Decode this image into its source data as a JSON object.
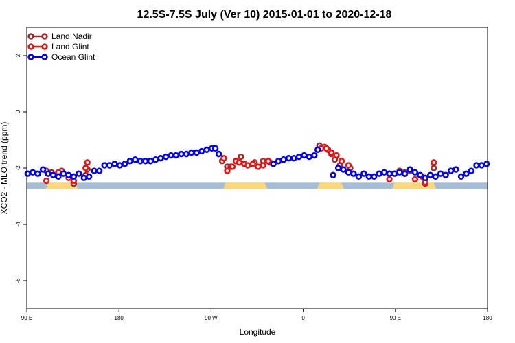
{
  "chart_data": {
    "type": "scatter",
    "title": "12.5S-7.5S July (Ver 10)   2015-01-01 to 2020-12-18",
    "xlabel": "Longitude",
    "ylabel": "XCO2 - MLO trend (ppm)",
    "xlim": [
      -90,
      180
    ],
    "ylim": [
      -7,
      3
    ],
    "x_ticks": [
      {
        "value": -90,
        "label": "90 E"
      },
      {
        "value": -36,
        "label": "180"
      },
      {
        "value": 18,
        "label": "90 W"
      },
      {
        "value": 72,
        "label": "0"
      },
      {
        "value": 126,
        "label": "90 E"
      },
      {
        "value": 180,
        "label": "180"
      }
    ],
    "y_ticks": [
      {
        "value": 2,
        "label": "2"
      },
      {
        "value": 0,
        "label": "0"
      },
      {
        "value": -2,
        "label": "-2"
      },
      {
        "value": -4,
        "label": "-4"
      },
      {
        "value": -6,
        "label": "-6"
      }
    ],
    "grid": false,
    "legend": {
      "position": "top-left",
      "entries": [
        "Land Nadir",
        "Land Glint",
        "Ocean Glint"
      ]
    },
    "series": [
      {
        "name": "Land Nadir",
        "color": "#a52a2a",
        "x": [
          -78.5,
          -75.5,
          -69.5,
          -62.5,
          -55.5,
          -54.5,
          24.5,
          27.5,
          29.5,
          35.5,
          43.5,
          48.5,
          52.5,
          81.5,
          84.5,
          86.5,
          88.5,
          90.5,
          93.5,
          99.5,
          128.5,
          131.5,
          134.5,
          143.5,
          148.5
        ],
        "y": [
          -2.1,
          -2.15,
          -2.1,
          -2.55,
          -2.25,
          -2.05,
          -1.75,
          -1.95,
          -1.95,
          -1.6,
          -1.8,
          -1.75,
          -1.8,
          -1.2,
          -1.25,
          -1.35,
          -1.5,
          -1.7,
          -1.9,
          -2.0,
          -2.1,
          -2.15,
          -2.1,
          -2.55,
          -2.0
        ]
      },
      {
        "name": "Land Glint",
        "color": "#ee1111",
        "x": [
          -78.5,
          -71.5,
          -65.5,
          -62.5,
          -55.5,
          -54.5,
          25.5,
          27.5,
          30.5,
          32.5,
          34.5,
          37.5,
          39.5,
          42.5,
          45.5,
          48.5,
          51.5,
          82.5,
          85.5,
          88.5,
          91.5,
          94.5,
          98.5,
          122.5,
          131.5,
          137.5,
          141.5,
          143.5,
          148.5
        ],
        "y": [
          -2.45,
          -2.15,
          -2.35,
          -2.45,
          -2.0,
          -1.8,
          -1.65,
          -2.1,
          -1.95,
          -1.75,
          -1.8,
          -1.85,
          -1.9,
          -1.85,
          -1.95,
          -1.9,
          -1.75,
          -1.3,
          -1.3,
          -1.45,
          -1.55,
          -1.75,
          -1.9,
          -2.4,
          -2.2,
          -2.4,
          -2.3,
          -2.5,
          -1.8
        ]
      },
      {
        "name": "Ocean Glint",
        "color": "#0000ee",
        "x": [
          -89.5,
          -86.5,
          -83.5,
          -80.5,
          -77.5,
          -74.5,
          -71.5,
          -68.5,
          -65.5,
          -62.5,
          -59.5,
          -56.5,
          -53.5,
          -50.5,
          -47.5,
          -44.5,
          -41.5,
          -38.5,
          -35.5,
          -32.5,
          -29.5,
          -26.5,
          -23.5,
          -20.5,
          -17.5,
          -14.5,
          -11.5,
          -8.5,
          -5.5,
          -2.5,
          0.5,
          3.5,
          6.5,
          9.5,
          12.5,
          15.5,
          18.5,
          20.5,
          22.5,
          54.5,
          57.5,
          60.5,
          63.5,
          66.5,
          69.5,
          72.5,
          75.5,
          78.5,
          80.5,
          89.5,
          92.5,
          95.5,
          98.5,
          101.5,
          104.5,
          107.5,
          110.5,
          113.5,
          116.5,
          119.5,
          122.5,
          125.5,
          128.5,
          131.5,
          134.5,
          137.5,
          140.5,
          143.5,
          146.5,
          149.5,
          152.5,
          155.5,
          158.5,
          161.5,
          164.5,
          167.5,
          170.5,
          173.5,
          176.5,
          179.5
        ],
        "y": [
          -2.2,
          -2.15,
          -2.2,
          -2.05,
          -2.2,
          -2.25,
          -2.3,
          -2.2,
          -2.25,
          -2.3,
          -2.2,
          -2.35,
          -2.3,
          -2.1,
          -2.1,
          -1.9,
          -1.9,
          -1.85,
          -1.9,
          -1.85,
          -1.75,
          -1.7,
          -1.75,
          -1.75,
          -1.75,
          -1.7,
          -1.65,
          -1.6,
          -1.55,
          -1.55,
          -1.5,
          -1.5,
          -1.45,
          -1.45,
          -1.4,
          -1.35,
          -1.3,
          -1.3,
          -1.5,
          -1.85,
          -1.75,
          -1.7,
          -1.65,
          -1.65,
          -1.6,
          -1.55,
          -1.6,
          -1.55,
          -1.35,
          -2.25,
          -2.0,
          -2.05,
          -2.15,
          -2.2,
          -2.3,
          -2.2,
          -2.3,
          -2.3,
          -2.2,
          -2.15,
          -2.2,
          -2.2,
          -2.15,
          -2.2,
          -2.05,
          -2.15,
          -2.25,
          -2.35,
          -2.25,
          -2.3,
          -2.2,
          -2.25,
          -2.1,
          -2.05,
          -2.3,
          -2.2,
          -2.1,
          -1.9,
          -1.9,
          -1.85
        ]
      }
    ],
    "map_strip": {
      "y_top": -2.52,
      "y_bottom": -2.75,
      "ocean_color": "#a7bcd6",
      "land_color": "#fad87a",
      "land_x_ranges": [
        [
          -79,
          -60
        ],
        [
          25,
          51
        ],
        [
          80,
          96
        ],
        [
          124,
          150
        ]
      ]
    }
  }
}
